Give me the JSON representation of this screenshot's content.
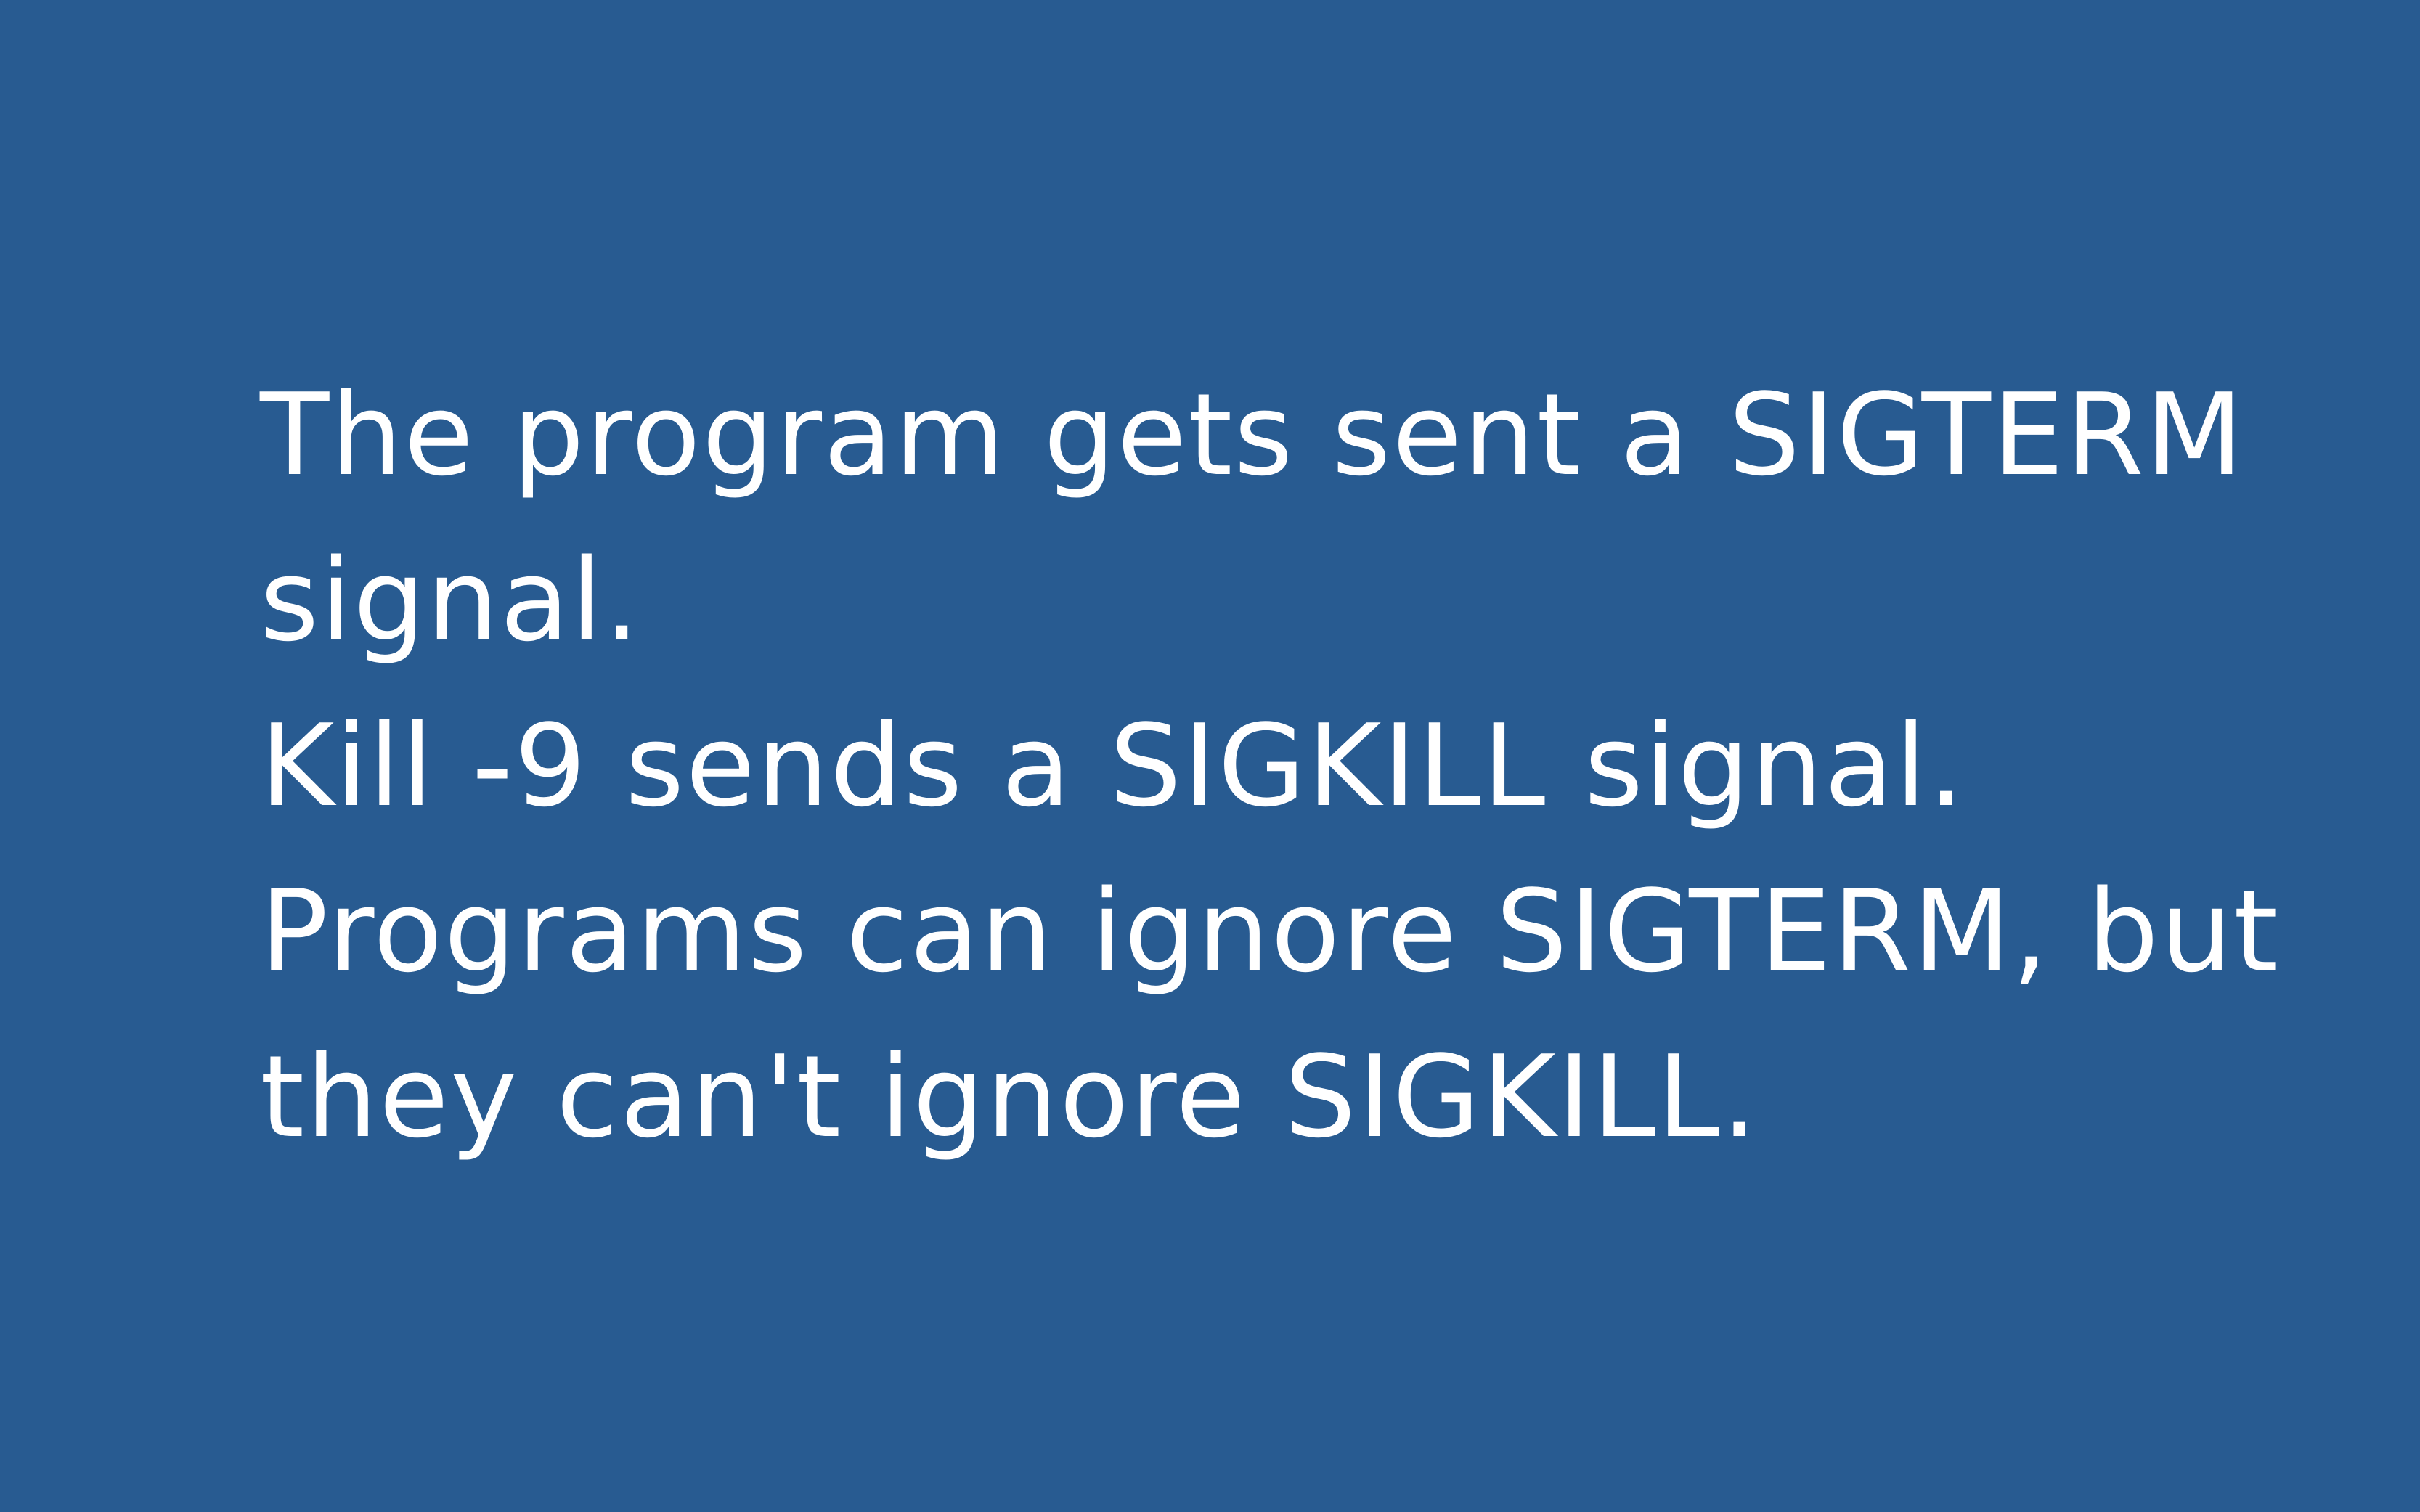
{
  "slide": {
    "background_color": "#285b91",
    "text_color": "#ffffff",
    "lines": [
      "The program gets sent a SIGTERM",
      "signal.",
      "Kill -9 sends a SIGKILL signal.",
      "Programs can ignore SIGTERM, but",
      "they can't ignore SIGKILL."
    ]
  }
}
